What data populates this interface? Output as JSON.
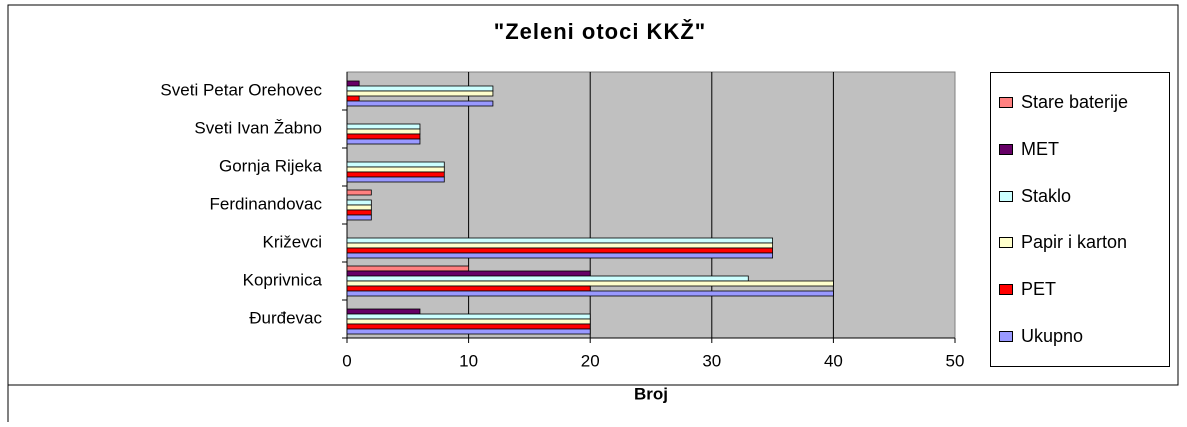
{
  "chart_data": {
    "type": "hbar",
    "title": "\"Zeleni otoci KKŽ\"",
    "x_label": "Broj",
    "categories": [
      "Đurđevac",
      "Koprivnica",
      "Križevci",
      "Ferdinandovac",
      "Gornja Rijeka",
      "Sveti Ivan Žabno",
      "Sveti Petar Orehovec"
    ],
    "series": [
      {
        "name": "Stare baterije",
        "color": "#ff8080",
        "values": [
          0,
          10,
          0,
          2,
          0,
          0,
          0
        ]
      },
      {
        "name": "MET",
        "color": "#660066",
        "values": [
          6,
          20,
          0,
          0,
          0,
          0,
          1
        ]
      },
      {
        "name": "Staklo",
        "color": "#ccffff",
        "values": [
          20,
          33,
          35,
          2,
          8,
          6,
          12
        ]
      },
      {
        "name": "Papir i karton",
        "color": "#ffffcc",
        "values": [
          20,
          40,
          35,
          2,
          8,
          6,
          12
        ]
      },
      {
        "name": "PET",
        "color": "#ff0000",
        "values": [
          20,
          20,
          35,
          2,
          8,
          6,
          1
        ]
      },
      {
        "name": "Ukupno",
        "color": "#9999ff",
        "values": [
          20,
          40,
          35,
          2,
          8,
          6,
          12
        ]
      }
    ],
    "xlim": [
      0,
      50
    ],
    "xticks": [
      0,
      10,
      20,
      30,
      40,
      50
    ],
    "grid": true,
    "legend": "right"
  }
}
